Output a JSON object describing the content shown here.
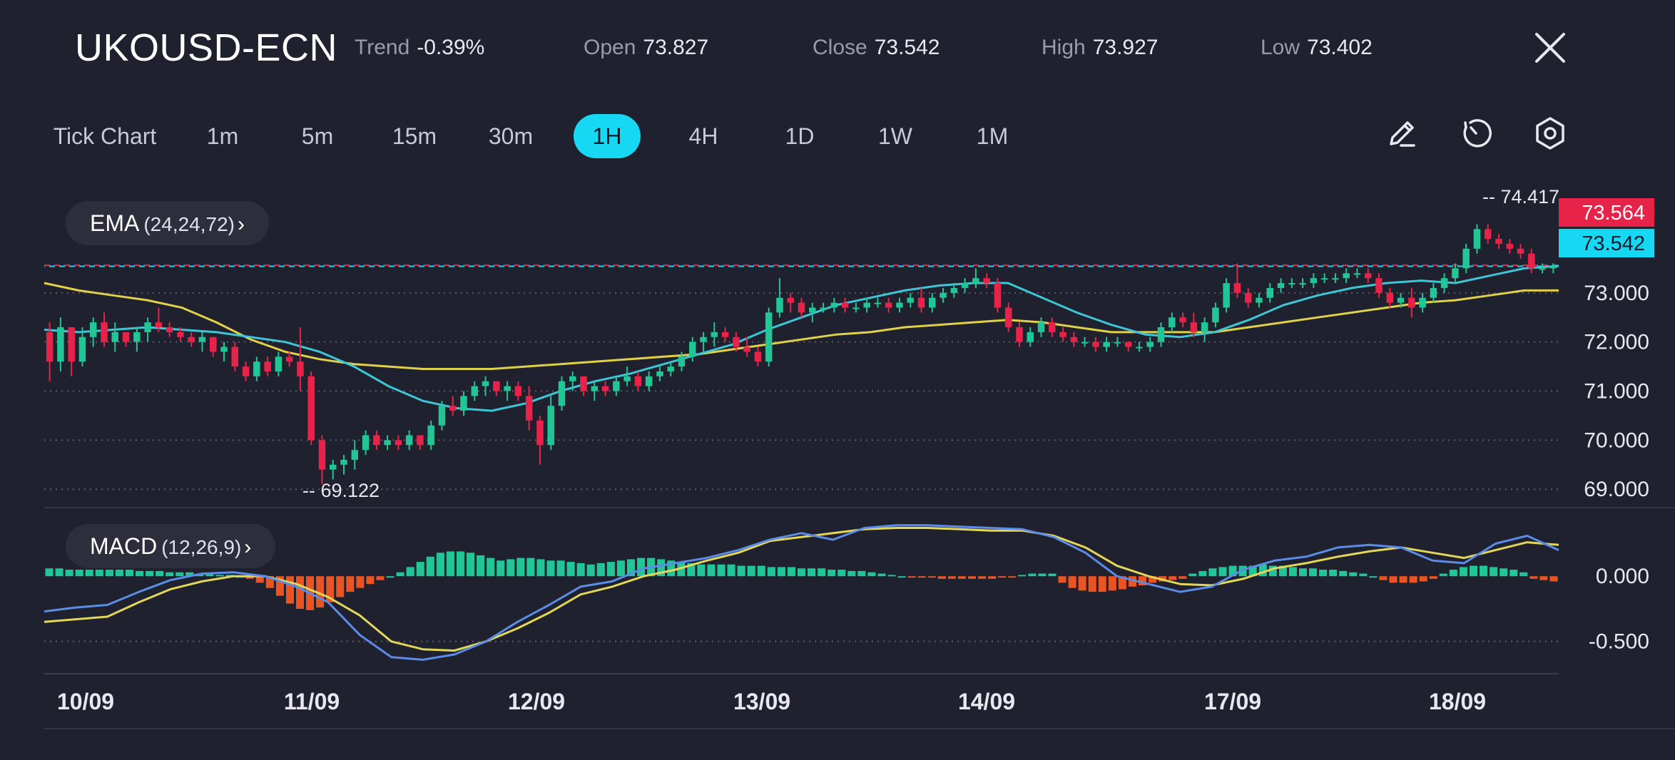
{
  "header": {
    "symbol": "UKOUSD-ECN",
    "stats": [
      {
        "key": "trend",
        "label": "Trend",
        "value": "-0.39%"
      },
      {
        "key": "open",
        "label": "Open",
        "value": "73.827"
      },
      {
        "key": "close",
        "label": "Close",
        "value": "73.542"
      },
      {
        "key": "high",
        "label": "High",
        "value": "73.927"
      },
      {
        "key": "low",
        "label": "Low",
        "value": "73.402"
      }
    ]
  },
  "timeframes": [
    "Tick Chart",
    "1m",
    "5m",
    "15m",
    "30m",
    "1H",
    "4H",
    "1D",
    "1W",
    "1M"
  ],
  "active_timeframe": "1H",
  "tools": {
    "draw": "pencil-icon",
    "reset": "history-icon",
    "settings": "gear-icon"
  },
  "indicators": {
    "ema": {
      "name": "EMA",
      "params": "(24,24,72)"
    },
    "macd": {
      "name": "MACD",
      "params": "(12,26,9)"
    }
  },
  "colors": {
    "bg": "#20212e",
    "up": "#22c595",
    "down": "#e8234a",
    "ema_fast": "#3fc6d6",
    "ema_slow": "#e0d14a",
    "macd_line": "#5b8ce8",
    "signal_line": "#e3d759",
    "hist_up": "#22c595",
    "hist_down": "#ea5322",
    "accent": "#17d8f2",
    "ask_tag": "#e8234a",
    "bid_tag": "#17d8f2"
  },
  "chart_data": {
    "type": "candlestick",
    "timeframe": "1H",
    "x_tick_labels": [
      "10/09",
      "11/09",
      "12/09",
      "13/09",
      "14/09",
      "17/09",
      "18/09"
    ],
    "price_axis": {
      "ticks": [
        "73.000",
        "72.000",
        "71.000",
        "70.000",
        "69.000"
      ],
      "ylim": [
        68.8,
        74.9
      ]
    },
    "macd_axis": {
      "ticks": [
        "0.000",
        "-0.500"
      ],
      "ylim": [
        -0.72,
        0.4
      ]
    },
    "annotations": {
      "high_marker": "74.417",
      "low_marker": "69.122"
    },
    "price_tags": {
      "ask": "73.564",
      "bid": "73.542"
    },
    "candles": [
      [
        72.2,
        72.4,
        71.2,
        71.6
      ],
      [
        71.6,
        72.5,
        71.4,
        72.3
      ],
      [
        72.3,
        72.3,
        71.3,
        71.6
      ],
      [
        71.6,
        72.3,
        71.5,
        72.1
      ],
      [
        72.1,
        72.5,
        71.9,
        72.4
      ],
      [
        72.4,
        72.6,
        71.9,
        72.0
      ],
      [
        72.0,
        72.4,
        71.8,
        72.2
      ],
      [
        72.2,
        72.2,
        71.9,
        72.0
      ],
      [
        72.0,
        72.3,
        71.8,
        72.2
      ],
      [
        72.2,
        72.5,
        72.0,
        72.4
      ],
      [
        72.4,
        72.7,
        72.2,
        72.3
      ],
      [
        72.3,
        72.4,
        72.1,
        72.2
      ],
      [
        72.2,
        72.3,
        72.0,
        72.1
      ],
      [
        72.1,
        72.2,
        71.9,
        72.0
      ],
      [
        72.0,
        72.2,
        71.8,
        72.1
      ],
      [
        72.1,
        72.1,
        71.7,
        71.8
      ],
      [
        71.8,
        72.0,
        71.6,
        71.9
      ],
      [
        71.9,
        72.0,
        71.4,
        71.5
      ],
      [
        71.5,
        71.6,
        71.2,
        71.3
      ],
      [
        71.3,
        71.7,
        71.2,
        71.6
      ],
      [
        71.6,
        71.7,
        71.3,
        71.4
      ],
      [
        71.4,
        71.8,
        71.3,
        71.7
      ],
      [
        71.7,
        71.8,
        71.5,
        71.6
      ],
      [
        71.6,
        72.3,
        71.0,
        71.3
      ],
      [
        71.3,
        71.4,
        69.9,
        70.0
      ],
      [
        70.0,
        70.1,
        69.1,
        69.4
      ],
      [
        69.4,
        69.6,
        69.2,
        69.5
      ],
      [
        69.5,
        69.7,
        69.3,
        69.6
      ],
      [
        69.6,
        70.0,
        69.4,
        69.8
      ],
      [
        69.8,
        70.2,
        69.7,
        70.1
      ],
      [
        70.1,
        70.2,
        69.8,
        69.9
      ],
      [
        69.9,
        70.1,
        69.8,
        70.0
      ],
      [
        70.0,
        70.1,
        69.8,
        69.9
      ],
      [
        69.9,
        70.2,
        69.8,
        70.1
      ],
      [
        70.1,
        70.1,
        69.8,
        69.9
      ],
      [
        69.9,
        70.4,
        69.8,
        70.3
      ],
      [
        70.3,
        70.8,
        70.2,
        70.7
      ],
      [
        70.7,
        70.9,
        70.5,
        70.6
      ],
      [
        70.6,
        71.0,
        70.5,
        70.9
      ],
      [
        70.9,
        71.2,
        70.8,
        71.1
      ],
      [
        71.1,
        71.3,
        70.9,
        71.2
      ],
      [
        71.2,
        71.2,
        70.9,
        71.0
      ],
      [
        71.0,
        71.2,
        70.8,
        71.1
      ],
      [
        71.1,
        71.2,
        70.8,
        70.9
      ],
      [
        70.9,
        71.1,
        70.2,
        70.4
      ],
      [
        70.4,
        70.5,
        69.5,
        69.9
      ],
      [
        69.9,
        70.9,
        69.8,
        70.7
      ],
      [
        70.7,
        71.3,
        70.6,
        71.2
      ],
      [
        71.2,
        71.4,
        71.0,
        71.3
      ],
      [
        71.3,
        71.3,
        70.9,
        71.0
      ],
      [
        71.0,
        71.2,
        70.8,
        71.1
      ],
      [
        71.1,
        71.2,
        70.9,
        71.0
      ],
      [
        71.0,
        71.3,
        70.9,
        71.2
      ],
      [
        71.2,
        71.5,
        71.1,
        71.3
      ],
      [
        71.3,
        71.4,
        71.0,
        71.1
      ],
      [
        71.1,
        71.4,
        71.0,
        71.3
      ],
      [
        71.3,
        71.5,
        71.2,
        71.4
      ],
      [
        71.4,
        71.6,
        71.3,
        71.5
      ],
      [
        71.5,
        71.8,
        71.4,
        71.7
      ],
      [
        71.7,
        72.1,
        71.6,
        72.0
      ],
      [
        72.0,
        72.2,
        71.8,
        72.1
      ],
      [
        72.1,
        72.4,
        71.9,
        72.2
      ],
      [
        72.2,
        72.3,
        72.0,
        72.1
      ],
      [
        72.1,
        72.2,
        71.8,
        71.9
      ],
      [
        71.9,
        72.1,
        71.7,
        71.8
      ],
      [
        71.8,
        71.9,
        71.5,
        71.6
      ],
      [
        71.6,
        72.7,
        71.5,
        72.6
      ],
      [
        72.6,
        73.3,
        72.5,
        72.9
      ],
      [
        72.9,
        73.0,
        72.6,
        72.8
      ],
      [
        72.8,
        72.9,
        72.5,
        72.6
      ],
      [
        72.6,
        72.8,
        72.4,
        72.7
      ],
      [
        72.7,
        72.8,
        72.6,
        72.7
      ],
      [
        72.7,
        72.9,
        72.6,
        72.8
      ],
      [
        72.8,
        72.9,
        72.6,
        72.7
      ],
      [
        72.7,
        72.8,
        72.6,
        72.7
      ],
      [
        72.7,
        72.9,
        72.6,
        72.8
      ],
      [
        72.8,
        72.9,
        72.7,
        72.8
      ],
      [
        72.8,
        72.9,
        72.6,
        72.7
      ],
      [
        72.7,
        72.9,
        72.6,
        72.8
      ],
      [
        72.8,
        73.0,
        72.7,
        72.9
      ],
      [
        72.9,
        73.1,
        72.6,
        72.7
      ],
      [
        72.7,
        73.0,
        72.6,
        72.9
      ],
      [
        72.9,
        73.1,
        72.8,
        73.0
      ],
      [
        73.0,
        73.2,
        72.9,
        73.1
      ],
      [
        73.1,
        73.3,
        73.0,
        73.2
      ],
      [
        73.2,
        73.5,
        73.1,
        73.3
      ],
      [
        73.3,
        73.4,
        73.1,
        73.2
      ],
      [
        73.2,
        73.3,
        72.6,
        72.7
      ],
      [
        72.7,
        72.8,
        72.2,
        72.3
      ],
      [
        72.3,
        72.4,
        71.9,
        72.0
      ],
      [
        72.0,
        72.3,
        71.9,
        72.2
      ],
      [
        72.2,
        72.5,
        72.1,
        72.4
      ],
      [
        72.4,
        72.5,
        72.1,
        72.2
      ],
      [
        72.2,
        72.3,
        72.0,
        72.1
      ],
      [
        72.1,
        72.2,
        71.9,
        72.0
      ],
      [
        72.0,
        72.1,
        71.9,
        72.0
      ],
      [
        72.0,
        72.1,
        71.8,
        71.9
      ],
      [
        71.9,
        72.1,
        71.8,
        72.0
      ],
      [
        72.0,
        72.1,
        71.9,
        72.0
      ],
      [
        72.0,
        72.0,
        71.8,
        71.9
      ],
      [
        71.9,
        72.0,
        71.8,
        71.9
      ],
      [
        71.9,
        72.1,
        71.8,
        72.0
      ],
      [
        72.0,
        72.4,
        71.9,
        72.3
      ],
      [
        72.3,
        72.6,
        72.2,
        72.5
      ],
      [
        72.5,
        72.6,
        72.3,
        72.4
      ],
      [
        72.4,
        72.6,
        72.1,
        72.2
      ],
      [
        72.2,
        72.5,
        72.0,
        72.4
      ],
      [
        72.4,
        72.8,
        72.3,
        72.7
      ],
      [
        72.7,
        73.3,
        72.6,
        73.2
      ],
      [
        73.2,
        73.6,
        72.9,
        73.0
      ],
      [
        73.0,
        73.1,
        72.7,
        72.8
      ],
      [
        72.8,
        73.0,
        72.7,
        72.9
      ],
      [
        72.9,
        73.2,
        72.8,
        73.1
      ],
      [
        73.1,
        73.3,
        73.0,
        73.2
      ],
      [
        73.2,
        73.3,
        73.1,
        73.2
      ],
      [
        73.2,
        73.3,
        73.1,
        73.2
      ],
      [
        73.2,
        73.4,
        73.1,
        73.3
      ],
      [
        73.3,
        73.4,
        73.2,
        73.3
      ],
      [
        73.3,
        73.4,
        73.2,
        73.3
      ],
      [
        73.3,
        73.5,
        73.2,
        73.4
      ],
      [
        73.4,
        73.5,
        73.3,
        73.4
      ],
      [
        73.4,
        73.5,
        73.2,
        73.3
      ],
      [
        73.3,
        73.4,
        72.9,
        73.0
      ],
      [
        73.0,
        73.1,
        72.7,
        72.8
      ],
      [
        72.8,
        73.0,
        72.7,
        72.9
      ],
      [
        72.9,
        73.1,
        72.5,
        72.7
      ],
      [
        72.7,
        73.0,
        72.6,
        72.9
      ],
      [
        72.9,
        73.2,
        72.8,
        73.1
      ],
      [
        73.1,
        73.4,
        73.0,
        73.3
      ],
      [
        73.3,
        73.6,
        73.2,
        73.5
      ],
      [
        73.5,
        74.0,
        73.4,
        73.9
      ],
      [
        73.9,
        74.4,
        73.8,
        74.3
      ],
      [
        74.3,
        74.4,
        74.0,
        74.1
      ],
      [
        74.1,
        74.2,
        73.9,
        74.0
      ],
      [
        74.0,
        74.1,
        73.8,
        73.9
      ],
      [
        73.9,
        74.0,
        73.7,
        73.8
      ],
      [
        73.8,
        73.9,
        73.4,
        73.5
      ],
      [
        73.5,
        73.6,
        73.4,
        73.5
      ],
      [
        73.5,
        73.6,
        73.4,
        73.542
      ]
    ],
    "ema_fast": [
      72.25,
      72.2,
      72.25,
      72.3,
      72.25,
      72.2,
      72.1,
      72.0,
      71.8,
      71.5,
      71.1,
      70.8,
      70.65,
      70.6,
      70.75,
      71.0,
      71.2,
      71.35,
      71.55,
      71.75,
      71.95,
      72.25,
      72.5,
      72.75,
      72.9,
      73.05,
      73.15,
      73.2,
      73.2,
      72.9,
      72.6,
      72.35,
      72.15,
      72.1,
      72.2,
      72.45,
      72.75,
      72.95,
      73.1,
      73.2,
      73.25,
      73.2,
      73.35,
      73.5,
      73.55
    ],
    "ema_slow": [
      73.2,
      73.05,
      72.95,
      72.85,
      72.7,
      72.4,
      72.05,
      71.8,
      71.65,
      71.55,
      71.5,
      71.45,
      71.45,
      71.45,
      71.5,
      71.55,
      71.6,
      71.65,
      71.7,
      71.75,
      71.85,
      71.95,
      72.05,
      72.15,
      72.2,
      72.3,
      72.35,
      72.4,
      72.45,
      72.4,
      72.3,
      72.2,
      72.2,
      72.2,
      72.2,
      72.3,
      72.4,
      72.5,
      72.6,
      72.7,
      72.8,
      72.85,
      72.95,
      73.05,
      73.05
    ],
    "macd_line": [
      -0.27,
      -0.24,
      -0.22,
      -0.12,
      -0.03,
      0.02,
      0.03,
      0.0,
      -0.08,
      -0.2,
      -0.45,
      -0.62,
      -0.64,
      -0.6,
      -0.5,
      -0.35,
      -0.22,
      -0.08,
      -0.04,
      0.06,
      0.1,
      0.14,
      0.2,
      0.28,
      0.33,
      0.28,
      0.37,
      0.39,
      0.39,
      0.38,
      0.37,
      0.36,
      0.3,
      0.18,
      0.0,
      -0.06,
      -0.12,
      -0.08,
      0.05,
      0.12,
      0.15,
      0.22,
      0.24,
      0.22,
      0.12,
      0.1,
      0.25,
      0.31,
      0.2
    ],
    "signal_line": [
      -0.35,
      -0.33,
      -0.31,
      -0.2,
      -0.1,
      -0.04,
      0.0,
      0.0,
      -0.06,
      -0.16,
      -0.3,
      -0.5,
      -0.56,
      -0.57,
      -0.5,
      -0.4,
      -0.28,
      -0.14,
      -0.08,
      0.0,
      0.05,
      0.12,
      0.18,
      0.27,
      0.3,
      0.33,
      0.36,
      0.37,
      0.37,
      0.36,
      0.35,
      0.35,
      0.31,
      0.22,
      0.08,
      0.0,
      -0.06,
      -0.07,
      -0.02,
      0.06,
      0.1,
      0.15,
      0.19,
      0.22,
      0.18,
      0.14,
      0.2,
      0.26,
      0.24
    ],
    "macd_histogram": [
      0.06,
      0.06,
      0.05,
      0.05,
      0.05,
      0.05,
      0.05,
      0.05,
      0.05,
      0.04,
      0.04,
      0.04,
      0.03,
      0.03,
      0.03,
      0.02,
      0.02,
      0.01,
      0.01,
      0.0,
      -0.02,
      -0.05,
      -0.09,
      -0.15,
      -0.21,
      -0.25,
      -0.26,
      -0.24,
      -0.2,
      -0.16,
      -0.12,
      -0.09,
      -0.06,
      -0.03,
      0.0,
      0.03,
      0.07,
      0.11,
      0.15,
      0.18,
      0.19,
      0.19,
      0.18,
      0.16,
      0.14,
      0.12,
      0.13,
      0.14,
      0.14,
      0.13,
      0.12,
      0.12,
      0.11,
      0.1,
      0.09,
      0.1,
      0.11,
      0.12,
      0.13,
      0.14,
      0.14,
      0.13,
      0.12,
      0.11,
      0.1,
      0.09,
      0.09,
      0.09,
      0.09,
      0.08,
      0.08,
      0.08,
      0.07,
      0.07,
      0.07,
      0.06,
      0.06,
      0.06,
      0.05,
      0.05,
      0.04,
      0.04,
      0.03,
      0.02,
      0.01,
      0.0,
      -0.01,
      -0.01,
      -0.01,
      -0.02,
      -0.02,
      -0.02,
      -0.02,
      -0.02,
      -0.02,
      -0.01,
      -0.01,
      0.01,
      0.02,
      0.02,
      0.02,
      -0.05,
      -0.09,
      -0.11,
      -0.12,
      -0.12,
      -0.11,
      -0.1,
      -0.08,
      -0.07,
      -0.05,
      -0.04,
      -0.03,
      -0.02,
      0.02,
      0.04,
      0.06,
      0.07,
      0.08,
      0.08,
      0.08,
      0.09,
      0.08,
      0.08,
      0.07,
      0.06,
      0.06,
      0.05,
      0.05,
      0.04,
      0.03,
      0.02,
      0.0,
      -0.03,
      -0.05,
      -0.05,
      -0.05,
      -0.04,
      -0.02,
      0.02,
      0.05,
      0.07,
      0.08,
      0.08,
      0.07,
      0.06,
      0.05,
      0.03,
      -0.02,
      -0.03,
      -0.04
    ]
  }
}
